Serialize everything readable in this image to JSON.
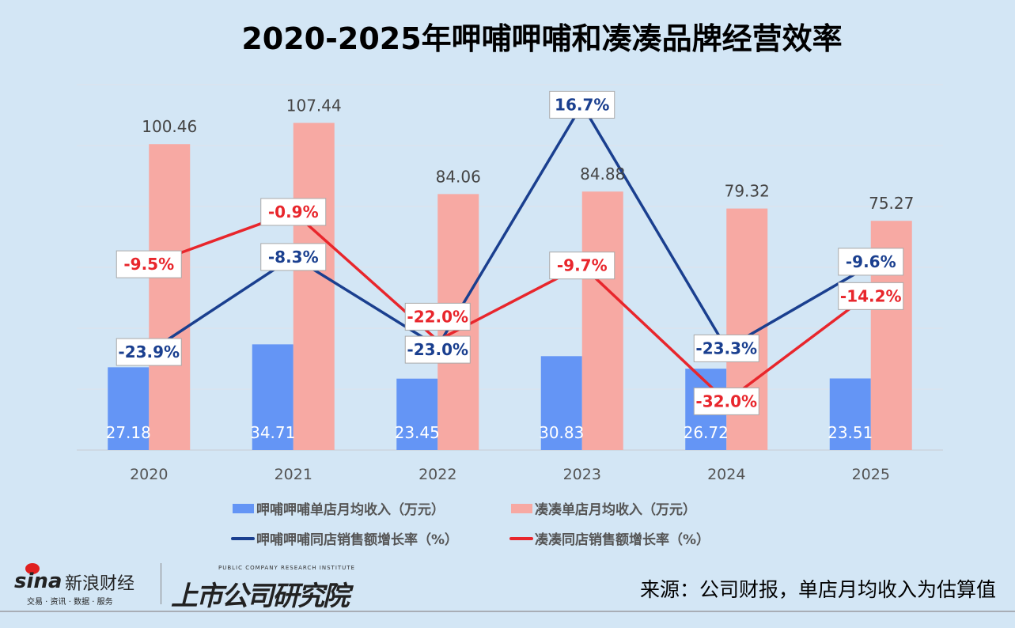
{
  "title": "2020-2025年呷哺呷哺和凑凑品牌经营效率",
  "chart_data": {
    "type": "bar+line",
    "title": "2020-2025年呷哺呷哺和凑凑品牌经营效率",
    "categories": [
      "2020",
      "2021",
      "2022",
      "2023",
      "2024",
      "2025"
    ],
    "ylim": [
      0,
      120
    ],
    "y2lim": [
      -40,
      20
    ],
    "grid": true,
    "legend_position": "bottom",
    "series": [
      {
        "name": "呷哺呷哺单店月均收入（万元）",
        "type": "bar",
        "axis": "left",
        "color": "#6495f5",
        "values": [
          27.18,
          34.71,
          23.45,
          30.83,
          26.72,
          23.51
        ],
        "labels": [
          "27.18",
          "34.71",
          "23.45",
          "30.83",
          "26.72",
          "23.51"
        ]
      },
      {
        "name": "凑凑单店月均收入（万元）",
        "type": "bar",
        "axis": "left",
        "color": "#f7a9a3",
        "values": [
          100.46,
          107.44,
          84.06,
          84.88,
          79.32,
          75.27
        ],
        "labels": [
          "100.46",
          "107.44",
          "84.06",
          "84.88",
          "79.32",
          "75.27"
        ]
      },
      {
        "name": "呷哺呷哺同店销售额增长率（%）",
        "type": "line",
        "axis": "right",
        "color": "#1a3f8f",
        "values": [
          -23.9,
          -8.3,
          -23.0,
          16.7,
          -23.3,
          -9.6
        ],
        "labels": [
          "-23.9%",
          "-8.3%",
          "-23.0%",
          "16.7%",
          "-23.3%",
          "-9.6%"
        ]
      },
      {
        "name": "凑凑同店销售额增长率（%）",
        "type": "line",
        "axis": "right",
        "color": "#e8262c",
        "values": [
          -9.5,
          -0.9,
          -22.0,
          -9.7,
          -32.0,
          -14.2
        ],
        "labels": [
          "-9.5%",
          "-0.9%",
          "-22.0%",
          "-9.7%",
          "-32.0%",
          "-14.2%"
        ]
      }
    ]
  },
  "footer": {
    "source": "来源：公司财报，单店月均收入为估算值",
    "logo_sina": "sina",
    "logo_sina_cn": "新浪财经",
    "logo_sina_sub": "交易 · 资讯 · 数据 · 服务",
    "logo_institute_en": "PUBLIC COMPANY RESEARCH INSTITUTE",
    "logo_institute_cn": "上市公司研究院"
  }
}
